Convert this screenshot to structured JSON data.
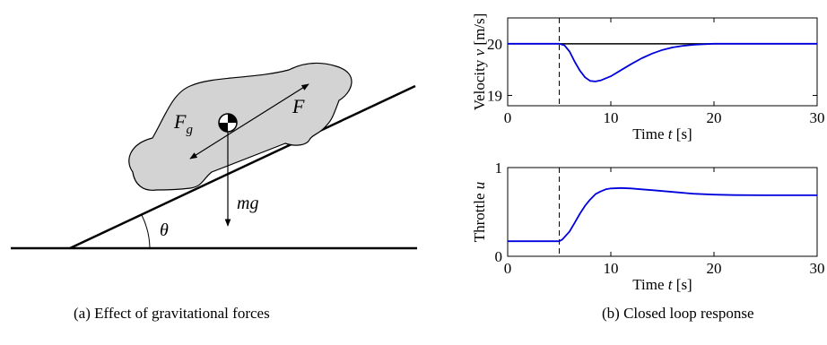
{
  "diagram": {
    "forces": {
      "gravity_component": "F",
      "gravity_subscript": "g",
      "drive": "F",
      "weight": "mg",
      "angle": "θ"
    }
  },
  "captions": {
    "a": "(a) Effect of gravitational forces",
    "b": "(b) Closed loop response"
  },
  "colors": {
    "response": "#0000dd",
    "reference": "#000000",
    "car_fill": "#d3d3d3"
  },
  "chart_data": [
    {
      "type": "line",
      "xlabel_pre": "Time ",
      "xlabel_var": "t",
      "xlabel_post": " [s]",
      "ylabel_pre": "Velocity ",
      "ylabel_var": "v",
      "ylabel_post": " [m/s]",
      "xlim": [
        0,
        30
      ],
      "ylim": [
        18.8,
        20.5
      ],
      "xticks": [
        "0",
        "10",
        "20",
        "30"
      ],
      "yticks": [
        "19",
        "20"
      ],
      "xtick_values": [
        0,
        10,
        20,
        30
      ],
      "ytick_values": [
        19,
        20
      ],
      "event_line_x": 5,
      "reference_y": 20,
      "series": [
        {
          "x": [
            0,
            5,
            5.5,
            6,
            6.5,
            7,
            7.5,
            8,
            8.5,
            9,
            10,
            11,
            12,
            13,
            14,
            15,
            16,
            17,
            18,
            19,
            20,
            21,
            22,
            24,
            26,
            30
          ],
          "y": [
            20,
            20,
            19.97,
            19.85,
            19.65,
            19.48,
            19.35,
            19.28,
            19.27,
            19.29,
            19.37,
            19.49,
            19.61,
            19.72,
            19.81,
            19.88,
            19.93,
            19.96,
            19.98,
            19.99,
            20.0,
            20.0,
            20.0,
            20.0,
            20.0,
            20.0
          ]
        }
      ]
    },
    {
      "type": "line",
      "xlabel_pre": "Time ",
      "xlabel_var": "t",
      "xlabel_post": " [s]",
      "ylabel_pre": "Throttle ",
      "ylabel_var": "u",
      "ylabel_post": "",
      "xlim": [
        0,
        30
      ],
      "ylim": [
        0,
        1
      ],
      "xticks": [
        "0",
        "10",
        "20",
        "30"
      ],
      "yticks": [
        "0",
        "1"
      ],
      "xtick_values": [
        0,
        10,
        20,
        30
      ],
      "ytick_values": [
        0,
        1
      ],
      "event_line_x": 5,
      "series": [
        {
          "x": [
            0,
            5,
            5.3,
            6,
            6.5,
            7,
            7.5,
            8,
            8.5,
            9,
            9.5,
            10,
            11,
            12,
            13,
            14,
            15,
            16,
            17,
            18,
            20,
            22,
            25,
            30
          ],
          "y": [
            0.17,
            0.17,
            0.19,
            0.28,
            0.38,
            0.48,
            0.57,
            0.64,
            0.7,
            0.73,
            0.755,
            0.765,
            0.77,
            0.765,
            0.755,
            0.745,
            0.735,
            0.725,
            0.715,
            0.705,
            0.695,
            0.69,
            0.688,
            0.688
          ]
        }
      ]
    }
  ]
}
